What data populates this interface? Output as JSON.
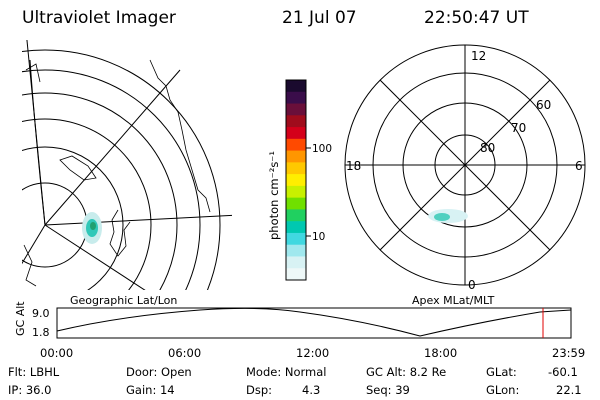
{
  "header": {
    "title": "Ultraviolet Imager",
    "date": "21 Jul 07",
    "time": "22:50:47 UT"
  },
  "panels": {
    "left_label": "Geographic Lat/Lon",
    "right_label": "Apex MLat/MLT"
  },
  "colorbar": {
    "label": "photon cm⁻²s⁻¹",
    "ticks": [
      "100",
      "10"
    ],
    "colors": [
      "#1a0a2e",
      "#3a0d4a",
      "#6a0f3a",
      "#a00c1c",
      "#d4001a",
      "#ff4a00",
      "#ff9600",
      "#ffc800",
      "#ffee00",
      "#c8f000",
      "#70e000",
      "#20d060",
      "#00c8b0",
      "#40d8e0",
      "#a0e8ee",
      "#d8f2f4",
      "#eef8f8"
    ]
  },
  "polar_plot": {
    "mlt_labels": [
      "12",
      "18",
      "6",
      "0"
    ],
    "lat_labels": [
      "60",
      "70",
      "80"
    ]
  },
  "timeline": {
    "ylabel": "GC Alt",
    "y_ticks": [
      "9.0",
      "1.8"
    ],
    "x_ticks": [
      "00:00",
      "06:00",
      "12:00",
      "18:00",
      "23:59"
    ]
  },
  "info": {
    "filter": "Flt: LBHL",
    "ip": "IP: 36.0",
    "door": "Door: Open",
    "gain": "Gain: 14",
    "mode": "Mode: Normal",
    "dsp_label": "Dsp:",
    "dsp_value": "4.3",
    "gc_alt": "GC Alt: 8.2 Re",
    "seq": "Seq: 39",
    "glat_label": "GLat:",
    "glat_value": "-60.1",
    "glon_label": "GLon:",
    "glon_value": "22.1"
  }
}
